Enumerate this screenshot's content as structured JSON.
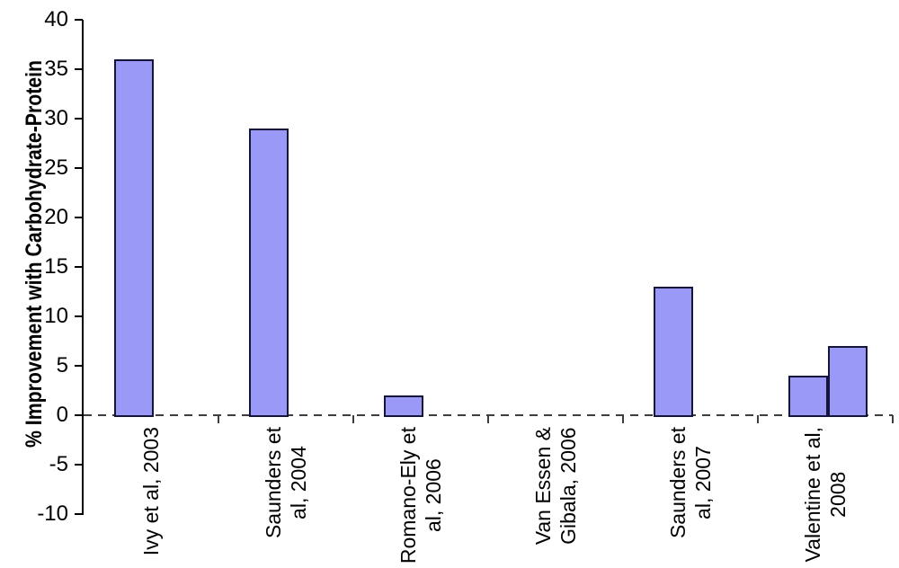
{
  "chart_data": {
    "type": "bar",
    "title": "",
    "xlabel": "",
    "ylabel": "% Improvement with Carbohydrate-Protein",
    "ylim": [
      -10,
      40
    ],
    "yticks": [
      40,
      35,
      30,
      25,
      20,
      15,
      10,
      5,
      0,
      -5,
      -10
    ],
    "grid": false,
    "legend": false,
    "zero_line_style": "dashed",
    "categories": [
      "Ivy et al, 2003",
      "Saunders et al, 2004",
      "Romano-Ely et al, 2006",
      "Van Essen & Gibala, 2006",
      "Saunders et al, 2007",
      "Valentine et al, 2008"
    ],
    "category_label_lines": [
      [
        "Ivy et al, 2003"
      ],
      [
        "Saunders et",
        "al, 2004"
      ],
      [
        "Romano-Ely et",
        "al, 2006"
      ],
      [
        "Van Essen &",
        "Gibala, 2006"
      ],
      [
        "Saunders et",
        "al, 2007"
      ],
      [
        "Valentine et al,",
        "2008"
      ]
    ],
    "series": [
      {
        "values": [
          36,
          29,
          2,
          0,
          13,
          4
        ]
      },
      {
        "values": [
          null,
          null,
          null,
          null,
          null,
          7
        ]
      }
    ],
    "colors": {
      "bar_fill": "#9b99f7",
      "bar_border": "#15153a",
      "axis": "#000000",
      "zero_line": "#3d3d3d",
      "text": "#000000",
      "background": "#ffffff"
    }
  }
}
